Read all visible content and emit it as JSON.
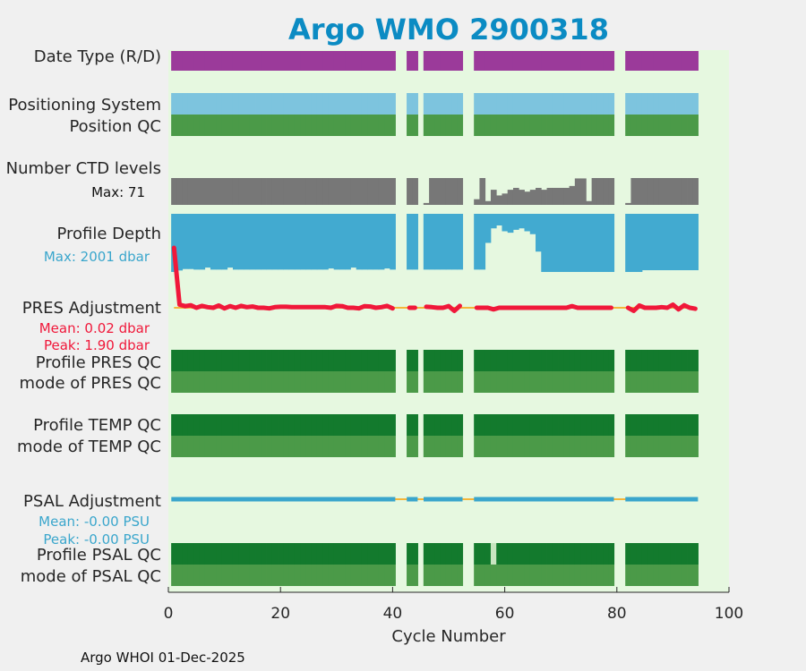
{
  "title": "Argo WMO 2900318",
  "footer": "Argo WHOI 01-Dec-2025",
  "colors": {
    "background": "#e6f8e0",
    "title": "#0b8bc3",
    "data_mode": "#9b3a9a",
    "positioning": "#7dc4de",
    "qc_good": "#4b9a48",
    "qc_profile_good": "#137a2d",
    "ctd": "#777777",
    "depth": "#42aad0",
    "pres_adj": "#f0183a",
    "psal_adj": "#3aa6cc",
    "zero_line": "#f5b63a",
    "qc_light": "#c8e5c0"
  },
  "rows": {
    "date_type": "Date Type (R/D)",
    "positioning": "Positioning System",
    "position_qc": "Position QC",
    "ctd_levels": "Number CTD levels",
    "ctd_max": "Max: 71",
    "profile_depth": "Profile Depth",
    "depth_max": "Max: 2001 dbar",
    "pres_adj": "PRES Adjustment",
    "pres_mean": "Mean: 0.02 dbar",
    "pres_peak": "Peak: 1.90 dbar",
    "profile_pres_qc": "Profile PRES QC",
    "mode_pres_qc": "mode of PRES QC",
    "profile_temp_qc": "Profile TEMP QC",
    "mode_temp_qc": "mode of TEMP QC",
    "psal_adj": "PSAL Adjustment",
    "psal_mean": "Mean: -0.00 PSU",
    "psal_peak": "Peak: -0.00 PSU",
    "profile_psal_qc": "Profile PSAL QC",
    "mode_psal_qc": "mode of PSAL QC"
  },
  "chart_data": {
    "type": "timeline",
    "xlabel": "Cycle Number",
    "xlim": [
      0,
      100
    ],
    "xticks": [
      0,
      20,
      40,
      60,
      80,
      100
    ],
    "cycles": [
      1,
      2,
      3,
      4,
      5,
      6,
      7,
      8,
      9,
      10,
      11,
      12,
      13,
      14,
      15,
      16,
      17,
      18,
      19,
      20,
      21,
      22,
      23,
      24,
      25,
      26,
      27,
      28,
      29,
      30,
      31,
      32,
      33,
      34,
      35,
      36,
      37,
      38,
      39,
      40,
      43,
      44,
      46,
      47,
      48,
      49,
      50,
      51,
      52,
      55,
      56,
      57,
      58,
      59,
      60,
      61,
      62,
      63,
      64,
      65,
      66,
      67,
      68,
      69,
      70,
      71,
      72,
      73,
      74,
      75,
      76,
      77,
      78,
      79,
      82,
      83,
      84,
      85,
      86,
      87,
      88,
      89,
      90,
      91,
      92,
      93,
      94
    ],
    "ctd_levels_max": 71,
    "ctd_levels": [
      71,
      71,
      71,
      71,
      71,
      71,
      71,
      71,
      71,
      71,
      71,
      71,
      71,
      71,
      71,
      71,
      71,
      71,
      71,
      71,
      71,
      71,
      71,
      71,
      71,
      71,
      71,
      71,
      71,
      71,
      71,
      71,
      71,
      71,
      71,
      71,
      71,
      71,
      71,
      71,
      71,
      71,
      5,
      71,
      71,
      71,
      71,
      71,
      71,
      15,
      71,
      10,
      40,
      25,
      30,
      40,
      45,
      40,
      35,
      40,
      45,
      40,
      45,
      45,
      45,
      45,
      50,
      70,
      70,
      10,
      71,
      71,
      71,
      71,
      5,
      71,
      71,
      71,
      71,
      71,
      71,
      71,
      71,
      71,
      71,
      71,
      71
    ],
    "depth_max_dbar": 2001,
    "profile_depth": [
      2000,
      1950,
      1900,
      1900,
      1920,
      1920,
      1850,
      1920,
      1920,
      1920,
      1850,
      1920,
      1920,
      1920,
      1920,
      1920,
      1920,
      1920,
      1920,
      1920,
      1920,
      1920,
      1920,
      1920,
      1920,
      1920,
      1920,
      1920,
      1880,
      1920,
      1920,
      1920,
      1850,
      1920,
      1920,
      1920,
      1920,
      1920,
      1880,
      1920,
      1920,
      1920,
      1920,
      1920,
      1920,
      1920,
      1920,
      1920,
      1920,
      1920,
      1920,
      1000,
      500,
      400,
      600,
      650,
      550,
      500,
      600,
      700,
      1300,
      2000,
      2000,
      2000,
      2000,
      2000,
      2000,
      2000,
      2000,
      2000,
      2000,
      2000,
      2000,
      2000,
      2000,
      2000,
      2000,
      1940,
      1940,
      1940,
      1940,
      1940,
      1940,
      1940,
      1940,
      1940,
      1940
    ],
    "pres_adjustment_dbar": [
      1.9,
      0.1,
      0.05,
      0.08,
      0.0,
      0.06,
      0.02,
      0.0,
      0.07,
      -0.02,
      0.05,
      0.0,
      0.06,
      0.02,
      0.04,
      0.0,
      0.0,
      -0.02,
      0.02,
      0.03,
      0.03,
      0.02,
      0.02,
      0.02,
      0.02,
      0.02,
      0.02,
      0.02,
      0.0,
      0.06,
      0.05,
      0.0,
      0.0,
      -0.02,
      0.05,
      0.04,
      0.0,
      0.02,
      0.06,
      -0.02,
      0.0,
      0.0,
      0.03,
      0.02,
      0.0,
      0.0,
      0.05,
      -0.1,
      0.06,
      0.0,
      0.0,
      0.0,
      -0.05,
      0.0,
      0.0,
      0.0,
      0.0,
      0.0,
      0.0,
      0.0,
      0.0,
      0.0,
      0.0,
      0.0,
      0.0,
      0.0,
      0.05,
      0.0,
      0.0,
      0.0,
      0.0,
      0.0,
      0.0,
      0.0,
      0.0,
      -0.1,
      0.07,
      0.0,
      0.0,
      0.0,
      0.02,
      0.0,
      0.1,
      -0.05,
      0.08,
      0.0,
      -0.03
    ],
    "pres_mean_dbar": 0.02,
    "pres_peak_dbar": 1.9,
    "psal_mean_psu": -0.0,
    "psal_peak_psu": -0.0,
    "psal_light_cycles": [
      58
    ]
  }
}
